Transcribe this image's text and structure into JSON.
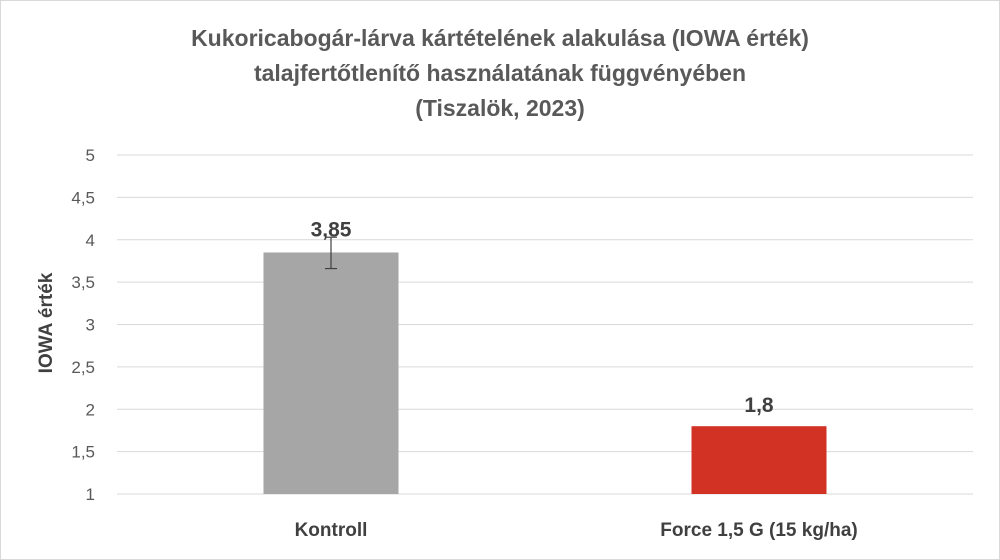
{
  "chart_data": {
    "type": "bar",
    "title_lines": [
      "Kukoricabogár-lárva kártételének alakulása (IOWA érték)",
      "talajfertőtlenítő használatának függvényében",
      "(Tiszalök, 2023)"
    ],
    "categories": [
      "Kontroll",
      "Force 1,5 G (15 kg/ha)"
    ],
    "values": [
      3.85,
      1.8
    ],
    "value_labels": [
      "3,85",
      "1,8"
    ],
    "error_bars": [
      {
        "low": 3.66,
        "high": 4.03
      },
      null
    ],
    "colors": [
      "#a6a6a6",
      "#d13224"
    ],
    "ylabel": "IOWA érték",
    "xlabel": "",
    "ylim": [
      1,
      5
    ],
    "yticks": [
      1,
      1.5,
      2,
      2.5,
      3,
      3.5,
      4,
      4.5,
      5
    ],
    "ytick_labels": [
      "1",
      "1,5",
      "2",
      "2,5",
      "3",
      "3,5",
      "4",
      "4,5",
      "5"
    ],
    "grid": true,
    "gridline_color": "#d9d9d9"
  }
}
